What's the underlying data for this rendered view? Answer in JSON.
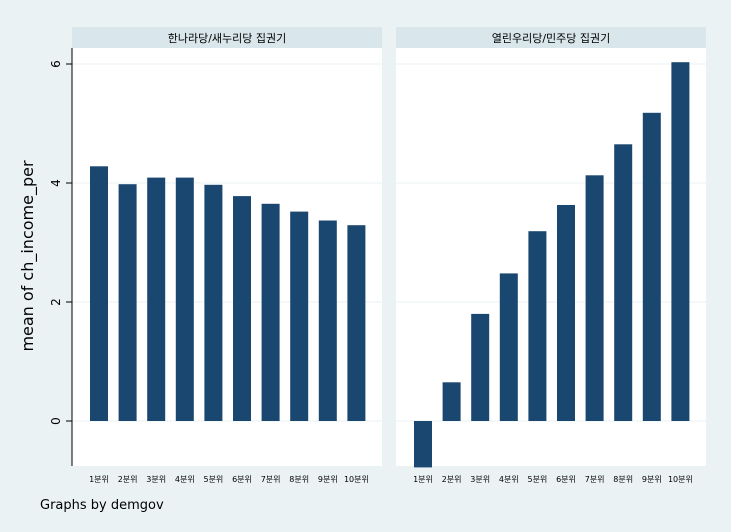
{
  "chart_data": {
    "type": "bar",
    "ylabel": "mean of ch_income_per",
    "caption": "Graphs by demgov",
    "ylim": [
      -0.78,
      6.6
    ],
    "yticks": [
      0,
      2,
      4,
      6
    ],
    "categories": [
      "1분위",
      "2분위",
      "3분위",
      "4분위",
      "5분위",
      "6분위",
      "7분위",
      "8분위",
      "9분위",
      "10분위"
    ],
    "panels": [
      {
        "title": "한나라당/새누리당 집권기",
        "values": [
          4.28,
          3.98,
          4.09,
          4.09,
          3.97,
          3.78,
          3.65,
          3.52,
          3.37,
          3.29
        ]
      },
      {
        "title": "열린우리당/민주당 집권기",
        "values": [
          -0.78,
          0.65,
          1.8,
          2.48,
          3.19,
          3.63,
          4.13,
          4.65,
          5.18,
          6.03
        ]
      }
    ],
    "colors": {
      "background": "#eaf2f3",
      "plot_bg": "#ffffff",
      "strip_bg": "#d9e6eb",
      "bar": "#1a476f",
      "grid": "#eaf2f3"
    }
  }
}
